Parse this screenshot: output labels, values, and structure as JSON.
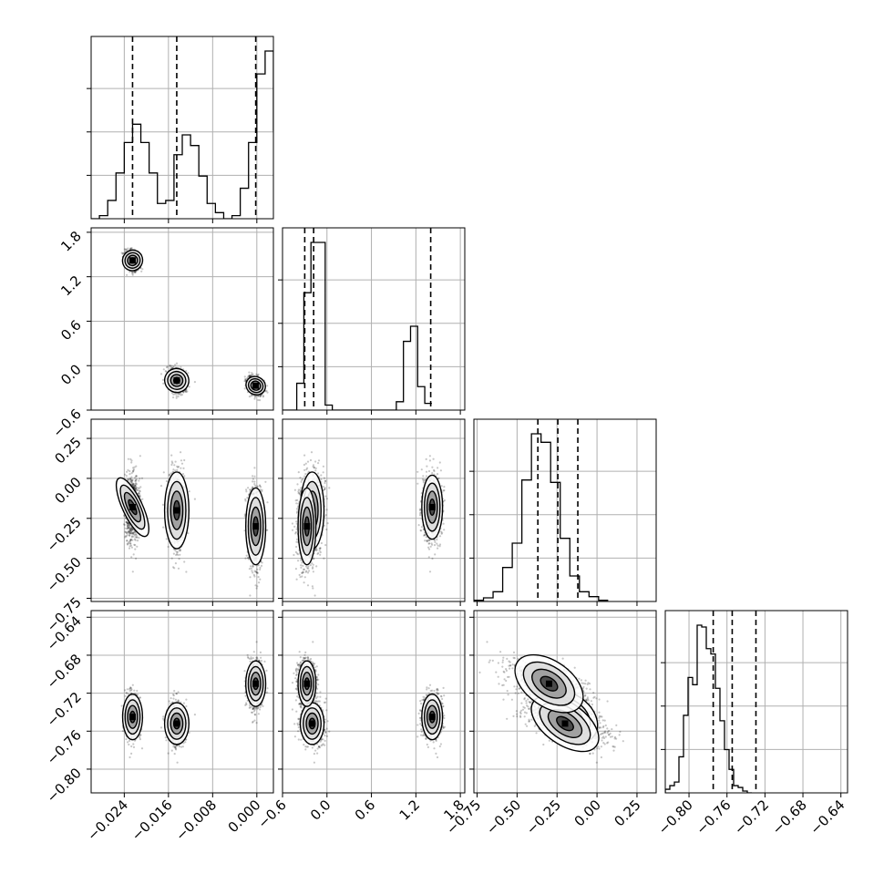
{
  "chart_data": {
    "type": "corner",
    "parameters": 4,
    "grid": true,
    "colors": {
      "line": "#000000",
      "grid": "#b0b0b0",
      "points": "#000000",
      "background": "#ffffff"
    },
    "axes": [
      {
        "index": 0,
        "range": [
          -0.03,
          0.003
        ],
        "ticks": [
          -0.024,
          -0.016,
          -0.008,
          0.0
        ],
        "tick_labels": [
          "−0.024",
          "−0.016",
          "−0.008",
          "0.000"
        ],
        "quantiles": [
          -0.0225,
          -0.0145,
          -0.0002
        ]
      },
      {
        "index": 1,
        "range": [
          -0.6,
          1.86
        ],
        "ticks": [
          -0.6,
          0.0,
          0.6,
          1.2,
          1.8
        ],
        "tick_labels": [
          "−0.6",
          "0.0",
          "0.6",
          "1.2",
          "1.8"
        ],
        "quantiles": [
          -0.3,
          -0.18,
          1.4
        ]
      },
      {
        "index": 2,
        "range": [
          -0.77,
          0.37
        ],
        "ticks": [
          -0.75,
          -0.5,
          -0.25,
          0.0,
          0.25
        ],
        "tick_labels": [
          "−0.75",
          "−0.50",
          "−0.25",
          "0.00",
          "0.25"
        ],
        "quantiles": [
          -0.37,
          -0.245,
          -0.12
        ]
      },
      {
        "index": 3,
        "range": [
          -0.825,
          -0.633
        ],
        "ticks": [
          -0.8,
          -0.76,
          -0.72,
          -0.68,
          -0.64
        ],
        "tick_labels": [
          "−0.80",
          "−0.76",
          "−0.72",
          "−0.68",
          "−0.64"
        ],
        "quantiles": [
          -0.7745,
          -0.7545,
          -0.7295
        ]
      }
    ],
    "histograms": [
      {
        "param": 0,
        "edges_start": -0.03,
        "bin_width": 0.0015,
        "counts": [
          0,
          2,
          12,
          30,
          50,
          62,
          50,
          30,
          10,
          12,
          42,
          55,
          48,
          28,
          10,
          4,
          0,
          2,
          20,
          50,
          95,
          110,
          58,
          5
        ]
      },
      {
        "param": 1,
        "edges_start": -0.6,
        "bin_width": 0.096,
        "counts": [
          0,
          0,
          16,
          70,
          100,
          100,
          3,
          0,
          0,
          0,
          0,
          0,
          0,
          0,
          0,
          0,
          5,
          41,
          50,
          14,
          4
        ]
      },
      {
        "param": 2,
        "edges_start": -0.77,
        "bin_width": 0.06,
        "counts": [
          1,
          3,
          8,
          28,
          48,
          100,
          138,
          131,
          98,
          52,
          21,
          8,
          4,
          1
        ]
      },
      {
        "param": 3,
        "edges_start": -0.825,
        "bin_width": 0.0048,
        "counts": [
          2,
          4,
          6,
          20,
          43,
          64,
          60,
          93,
          92,
          80,
          77,
          58,
          40,
          24,
          13,
          4,
          3,
          1,
          0
        ]
      }
    ],
    "clusters": [
      {
        "mean": [
          -0.0225,
          1.42,
          -0.18,
          -0.745
        ],
        "sd": [
          0.0009,
          0.07,
          0.1,
          0.012
        ],
        "weight": 0.33
      },
      {
        "mean": [
          -0.0145,
          -0.2,
          -0.2,
          -0.752
        ],
        "sd": [
          0.0011,
          0.08,
          0.12,
          0.011
        ],
        "weight": 0.3
      },
      {
        "mean": [
          -0.0002,
          -0.27,
          -0.3,
          -0.71
        ],
        "sd": [
          0.0009,
          0.06,
          0.12,
          0.012
        ],
        "weight": 0.37
      }
    ],
    "pairs": [
      {
        "row": 1,
        "col": 0
      },
      {
        "row": 2,
        "col": 0
      },
      {
        "row": 2,
        "col": 1
      },
      {
        "row": 3,
        "col": 0
      },
      {
        "row": 3,
        "col": 1
      },
      {
        "row": 3,
        "col": 2
      }
    ]
  }
}
